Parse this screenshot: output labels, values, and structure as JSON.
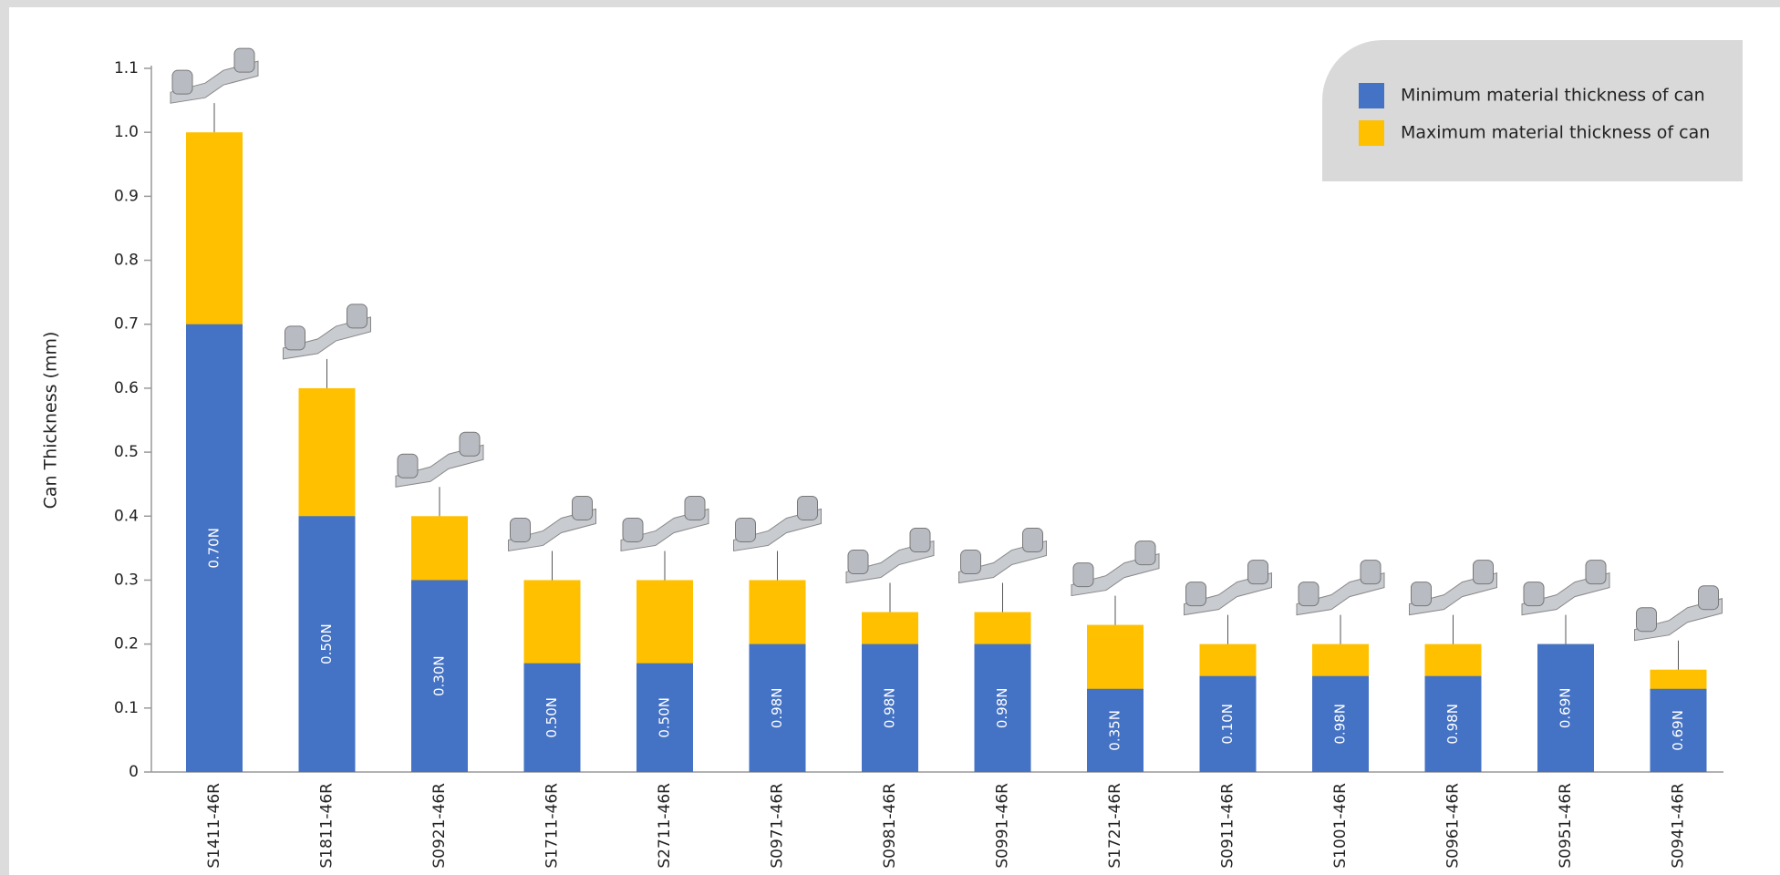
{
  "chart_data": {
    "type": "bar",
    "y_label": "Can Thickness (mm)",
    "categories": [
      "S1411-46R",
      "S1811-46R",
      "S0921-46R",
      "S1711-46R",
      "S2711-46R",
      "S0971-46R",
      "S0981-46R",
      "S0991-46R",
      "S1721-46R",
      "S0911-46R",
      "S1001-46R",
      "S0961-46R",
      "S0951-46R",
      "S0941-46R"
    ],
    "series": [
      {
        "name": "Maximum material thickness of can",
        "color": "#ffc000",
        "values": [
          1.0,
          0.6,
          0.4,
          0.3,
          0.3,
          0.3,
          0.25,
          0.25,
          0.23,
          0.2,
          0.2,
          0.2,
          0.2,
          0.16
        ]
      },
      {
        "name": "Minimum material thickness of can",
        "color": "#4472c4",
        "values": [
          0.7,
          0.4,
          0.3,
          0.17,
          0.17,
          0.2,
          0.2,
          0.2,
          0.13,
          0.15,
          0.15,
          0.15,
          0.2,
          0.13
        ]
      }
    ],
    "force_labels": [
      "0.70N",
      "0.50N",
      "0.30N",
      "0.50N",
      "0.50N",
      "0.98N",
      "0.98N",
      "0.98N",
      "0.35N",
      "0.10N",
      "0.98N",
      "0.98N",
      "0.69N",
      "0.69N"
    ],
    "ylim": [
      0,
      1.1
    ],
    "yticks": [
      0,
      0.1,
      0.2,
      0.3,
      0.4,
      0.5,
      0.6,
      0.7,
      0.8,
      0.9,
      {
        "value": 1,
        "label": "1.0"
      },
      1.1
    ],
    "legend_position": "upper right"
  }
}
